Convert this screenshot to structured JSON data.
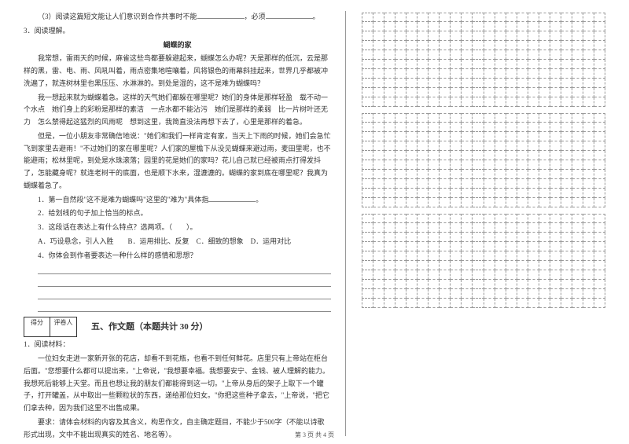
{
  "q3_text": "（3）阅读这篇短文能让人们意识到合作共事时不能",
  "q3_suffix": "，必须",
  "reading_label": "3．阅读理解。",
  "title": "蝴蝶的家",
  "p1": "我常想，雷雨天的时候，麻雀这些鸟都要躲避起来，蝴蝶怎么办呢？天是那样的低沉，云是那样的黑，雷、电、雨、风吼叫着，雨点密集地喧嚷着，风将银色的雨幕斜挂起来，世界几乎都被冲洗遍了，就连树林里也黑压压、水淋淋的。到处是湿的，这不是难为蝴蝶吗？",
  "p2": "我一想起来就为蝴蝶着急。这样的天气她们都躲在哪里呢？她们的身体是那样轻盈　载不动一个水点　她们身上的彩粉是那样的素洁　一点水都不能沾污　她们是那样的柔弱　比一片树叶还无力　怎么禁得起这猛烈的风雨呢　想到这里，我简直没法再想下去了，心里是那样的着急。",
  "p3": "但是，一位小朋友非常确信地说：\"她们和我们一样肯定有家，当天上下雨的时候，她们会急忙飞到家里去避雨！\"不过她们的家在哪里呢？人们家的屋檐下从没见蝴蝶来避过雨，麦田里呢，也不能避雨；松林里呢，到处是水珠滚落；园里的花是她们的家吗？花儿自己就已经被雨点打得发抖了，怎能藏身呢？就连老树干的底面，也是顺下水来，湿漉漉的。蝴蝶的家到底在哪里呢？我真为蝴蝶着急了。",
  "q1": "1．第一自然段\"这不是难为蝴蝶吗\"这里的\"难为\"具体指",
  "q2": "2．给划线的句子加上恰当的标点。",
  "q3": "3．这段话在表达上有什么特点？选两项。（　　）。",
  "optA": "A．巧设悬念，引人入胜",
  "optB": "B．运用排比、反复",
  "optC": "C．细致的想象",
  "optD": "D．运用对比",
  "q4": "4．你体会到作者要表达一种什么样的感情和思想？",
  "score_label1": "得分",
  "score_label2": "评卷人",
  "section5": "五、作文题（本题共计 30 分）",
  "comp_label": "1．阅读材料：",
  "comp_p1": "一位妇女走进一家新开张的花店，却看不到花瓶，也看不到任何鲜花。店里只有上帝站在柜台后面。\"您想要什么都可以提出来，\"上帝说，\"我想要幸福。我想要安宁、金钱、被人理解的能力。我想死后能够上天堂。而且也想让我的朋友们都能得到这一切。\"上帝从身后的架子上取下一个罐子，打开罐盖，从中取出一些颗粒状的东西，递给那位妇女。\"你把这些种子拿去，\"上帝说，\"把它们拿去种，因为我们这里不出售成果。",
  "comp_p2": "要求：请体会材料的内容及其含义，构思作文，自主确定题目，不能少于500字（不能以诗歌形式出现，文中不能出现真实的姓名、地名等）。",
  "footer": "第 3 页 共 4 页",
  "grid": {
    "blocks": 3,
    "rows_per_block": 10,
    "cols": 22,
    "border_color": "#999999",
    "dash": true
  }
}
